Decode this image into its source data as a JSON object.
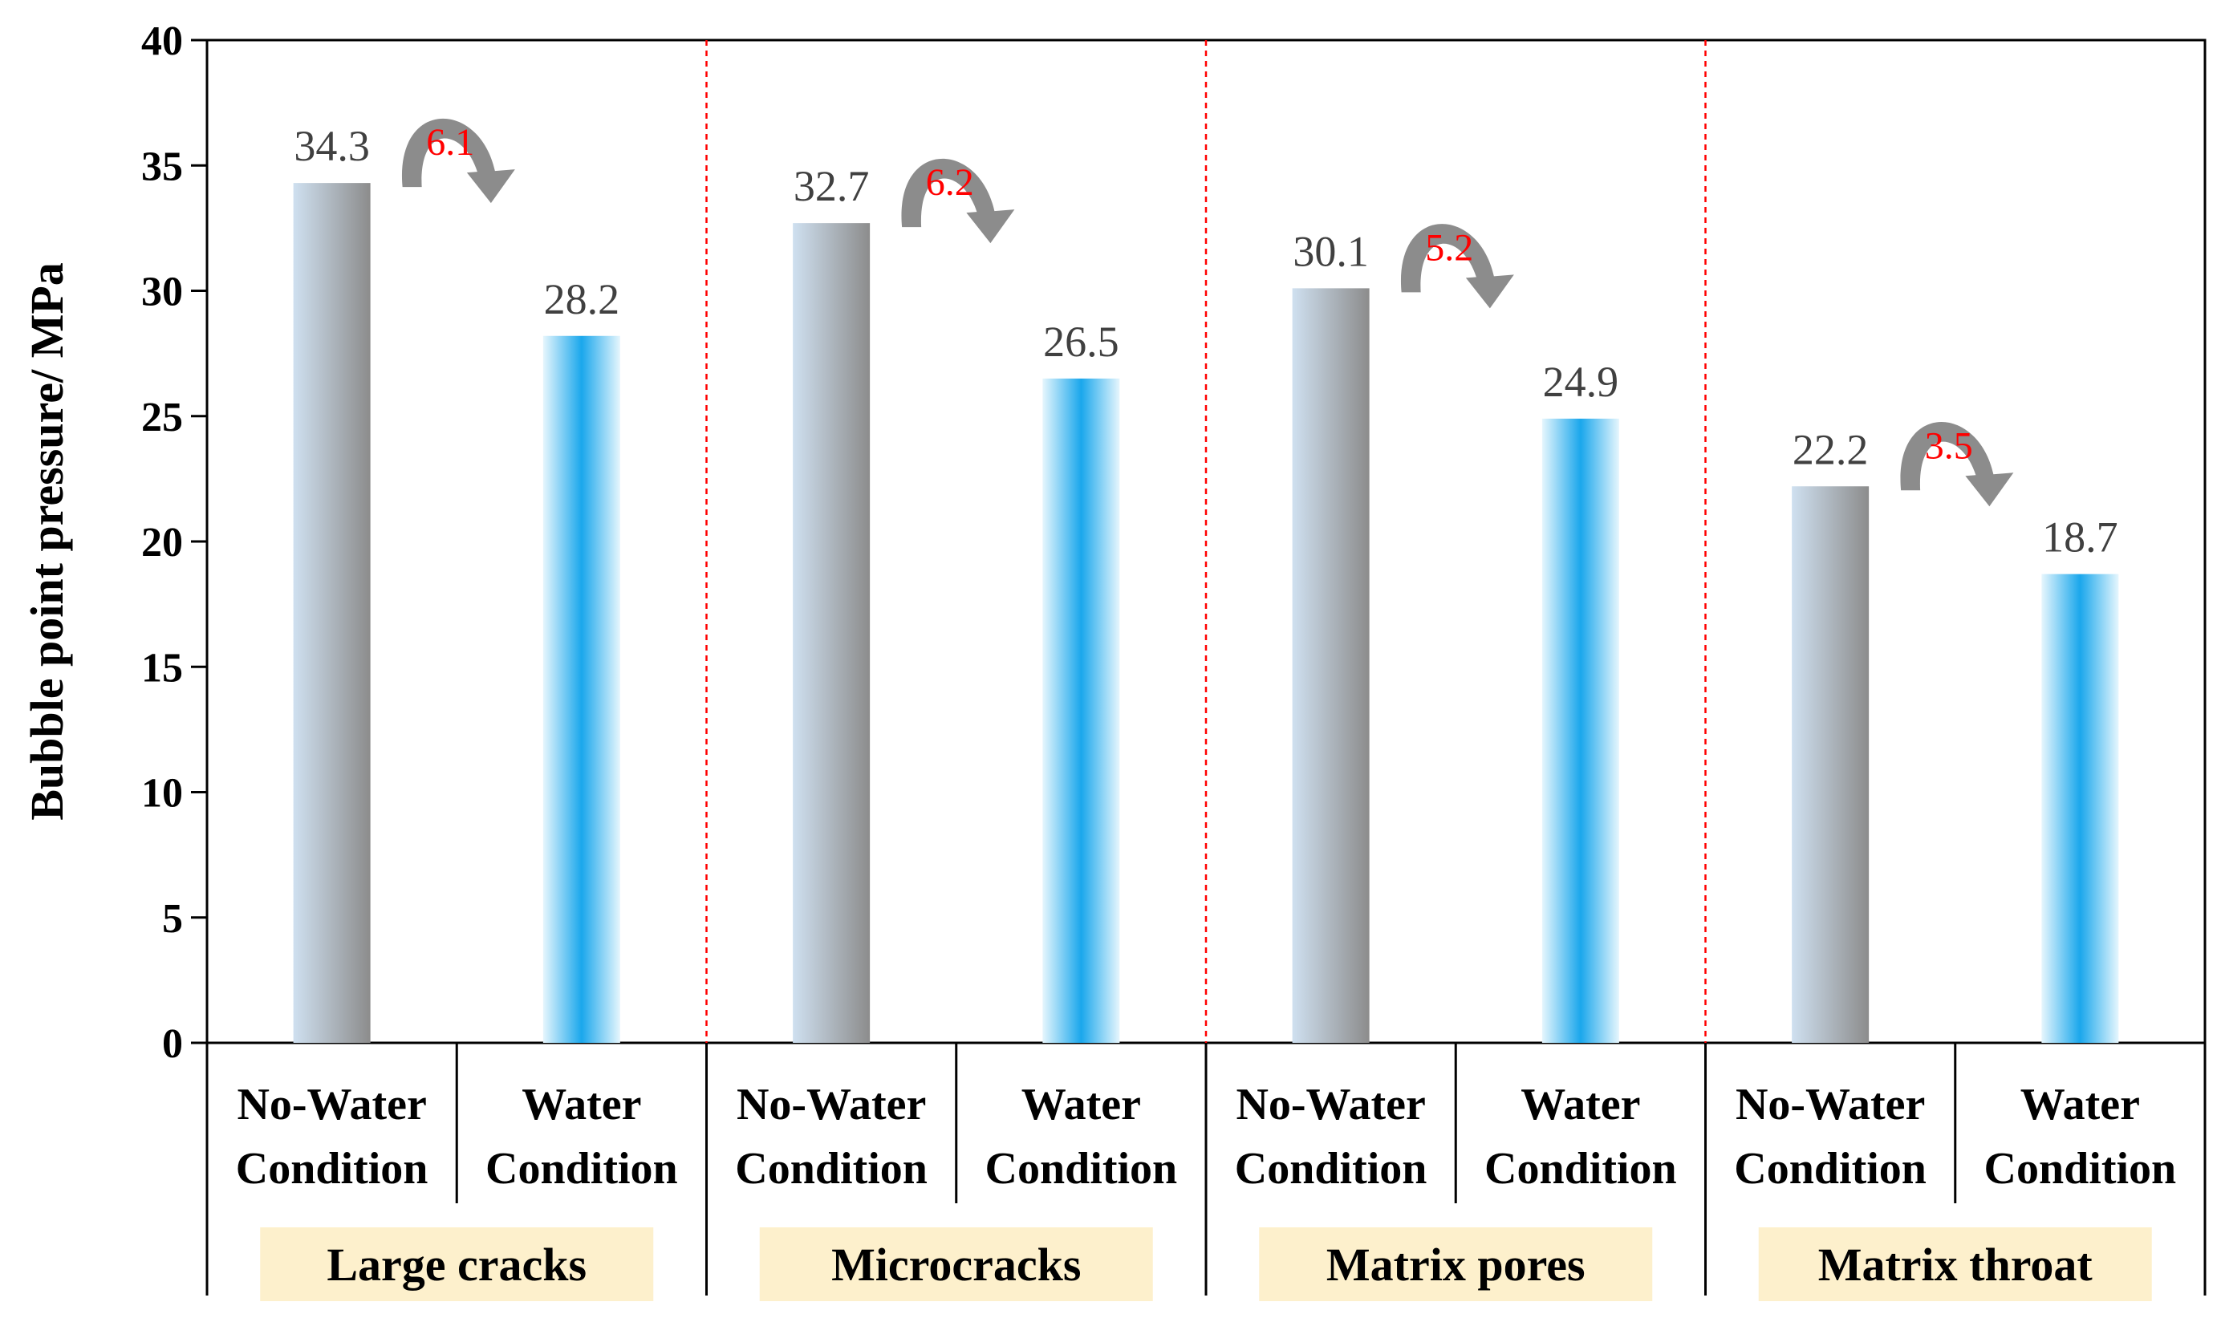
{
  "chart_data": {
    "type": "bar",
    "ylabel": "Bubble point pressure/ MPa",
    "xlabel": "",
    "ylim": [
      0,
      40
    ],
    "yticks": [
      "0",
      "5",
      "10",
      "15",
      "20",
      "25",
      "30",
      "35",
      "40"
    ],
    "groups": [
      {
        "label": "Large cracks",
        "difference": "6.1"
      },
      {
        "label": "Microcracks",
        "difference": "6.2"
      },
      {
        "label": "Matrix pores",
        "difference": "5.2"
      },
      {
        "label": "Matrix throat",
        "difference": "3.5"
      }
    ],
    "conditions": [
      {
        "line1": "No-Water",
        "line2": "Condition"
      },
      {
        "line1": "Water",
        "line2": "Condition"
      }
    ],
    "series": [
      {
        "values": [
          34.3,
          32.7,
          30.1,
          22.2
        ],
        "labels": [
          "34.3",
          "32.7",
          "30.1",
          "22.2"
        ],
        "color_light": "#cfe0f0",
        "color_dark": "#8c8c8c"
      },
      {
        "values": [
          28.2,
          26.5,
          24.9,
          18.7
        ],
        "labels": [
          "28.2",
          "26.5",
          "24.9",
          "18.7"
        ],
        "color_light": "#e6f6fd",
        "color_dark": "#1aa7ec"
      }
    ],
    "colors": {
      "divider": "#ff0000",
      "arrow": "#8c8c8c",
      "difference_text": "#ff0000",
      "group_label_bg": "#fdf0cc"
    },
    "grid": false
  }
}
